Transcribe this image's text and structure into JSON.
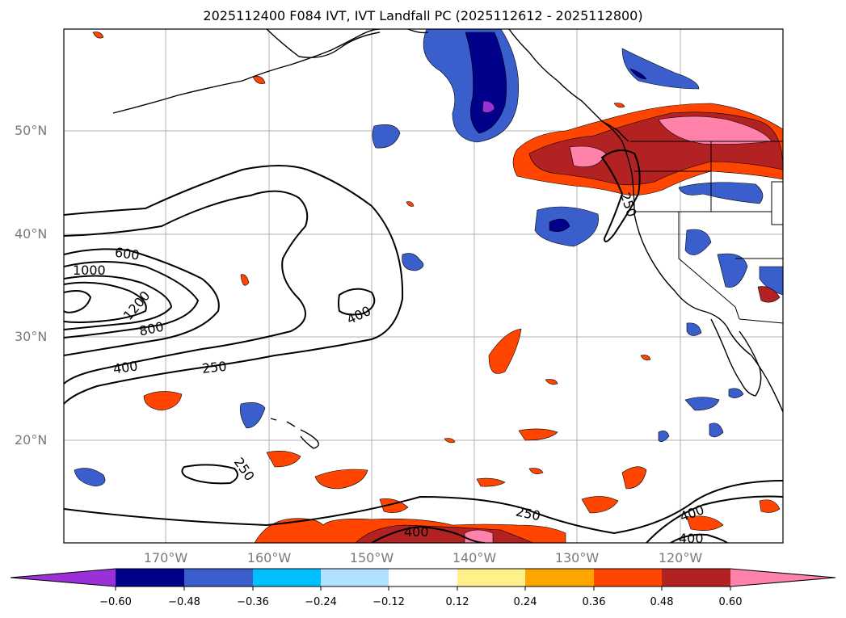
{
  "title": "2025112400 F084 IVT, IVT Landfall PC (2025112612 - 2025112800)",
  "lat_labels": [
    "50°N",
    "40°N",
    "30°N",
    "20°N"
  ],
  "lon_labels": [
    "170°W",
    "160°W",
    "150°W",
    "140°W",
    "130°W",
    "120°W"
  ],
  "contour_labels": [
    "600",
    "1000",
    "1200",
    "800",
    "400",
    "250",
    "400",
    "250",
    "250",
    "250",
    "400",
    "400",
    "400"
  ],
  "colorbar": {
    "colors": [
      "#9b30d9",
      "#00008b",
      "#3a5fcd",
      "#00bfff",
      "#b0e2ff",
      "#ffffff",
      "#fff08a",
      "#ffa500",
      "#ff4500",
      "#b22222",
      "#ff82ab"
    ],
    "tick_labels": [
      "−0.60",
      "−0.48",
      "−0.36",
      "−0.24",
      "−0.12",
      "0.12",
      "0.24",
      "0.36",
      "0.48",
      "0.60"
    ]
  }
}
